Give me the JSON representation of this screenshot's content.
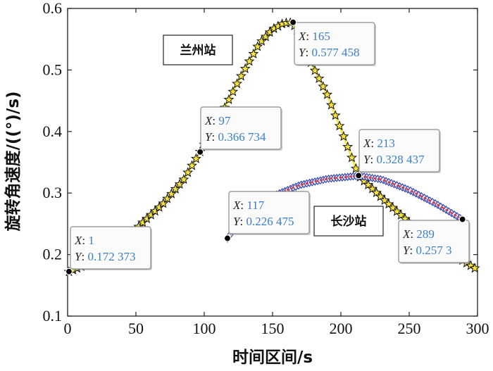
{
  "chart_data": {
    "type": "line",
    "xlabel": "时间区间/s",
    "ylabel": "旋转角速度/((°)/s)",
    "xlim": [
      0,
      300
    ],
    "ylim": [
      0.1,
      0.6
    ],
    "xticks": [
      "0",
      "50",
      "100",
      "150",
      "200",
      "250",
      "300"
    ],
    "yticks": [
      "0.1",
      "0.2",
      "0.3",
      "0.4",
      "0.5",
      "0.6"
    ],
    "grid": false,
    "annotations": [
      "兰州站",
      "长沙站"
    ],
    "series": [
      {
        "name": "兰州站",
        "line_color": "#f5e642",
        "marker": "star",
        "x": [
          1,
          20,
          40,
          55,
          70,
          85,
          97,
          110,
          125,
          140,
          150,
          158,
          165,
          175,
          190,
          205,
          213,
          230,
          250,
          270,
          285,
          300
        ],
        "y": [
          0.172,
          0.19,
          0.218,
          0.252,
          0.283,
          0.322,
          0.367,
          0.417,
          0.482,
          0.542,
          0.566,
          0.576,
          0.577,
          0.525,
          0.46,
          0.375,
          0.328,
          0.292,
          0.252,
          0.22,
          0.196,
          0.175
        ]
      },
      {
        "name": "长沙站",
        "line_color": "#e53935",
        "marker": "diamond",
        "x": [
          117,
          130,
          150,
          170,
          190,
          213,
          230,
          250,
          270,
          289
        ],
        "y": [
          0.226,
          0.268,
          0.295,
          0.313,
          0.323,
          0.328,
          0.322,
          0.305,
          0.282,
          0.257
        ]
      }
    ],
    "datatips": [
      {
        "x_text": "1",
        "y_text": "0.172 373",
        "x": 1,
        "y": 0.172373
      },
      {
        "x_text": "97",
        "y_text": "0.366 734",
        "x": 97,
        "y": 0.366734
      },
      {
        "x_text": "165",
        "y_text": "0.577 458",
        "x": 165,
        "y": 0.577458
      },
      {
        "x_text": "213",
        "y_text": "0.328 437",
        "x": 213,
        "y": 0.328437
      },
      {
        "x_text": "117",
        "y_text": "0.226 475",
        "x": 117,
        "y": 0.226475
      },
      {
        "x_text": "289",
        "y_text": "0.257 3",
        "x": 289,
        "y": 0.2573
      }
    ],
    "datatip_keys": {
      "x": "X",
      "y": "Y"
    }
  }
}
